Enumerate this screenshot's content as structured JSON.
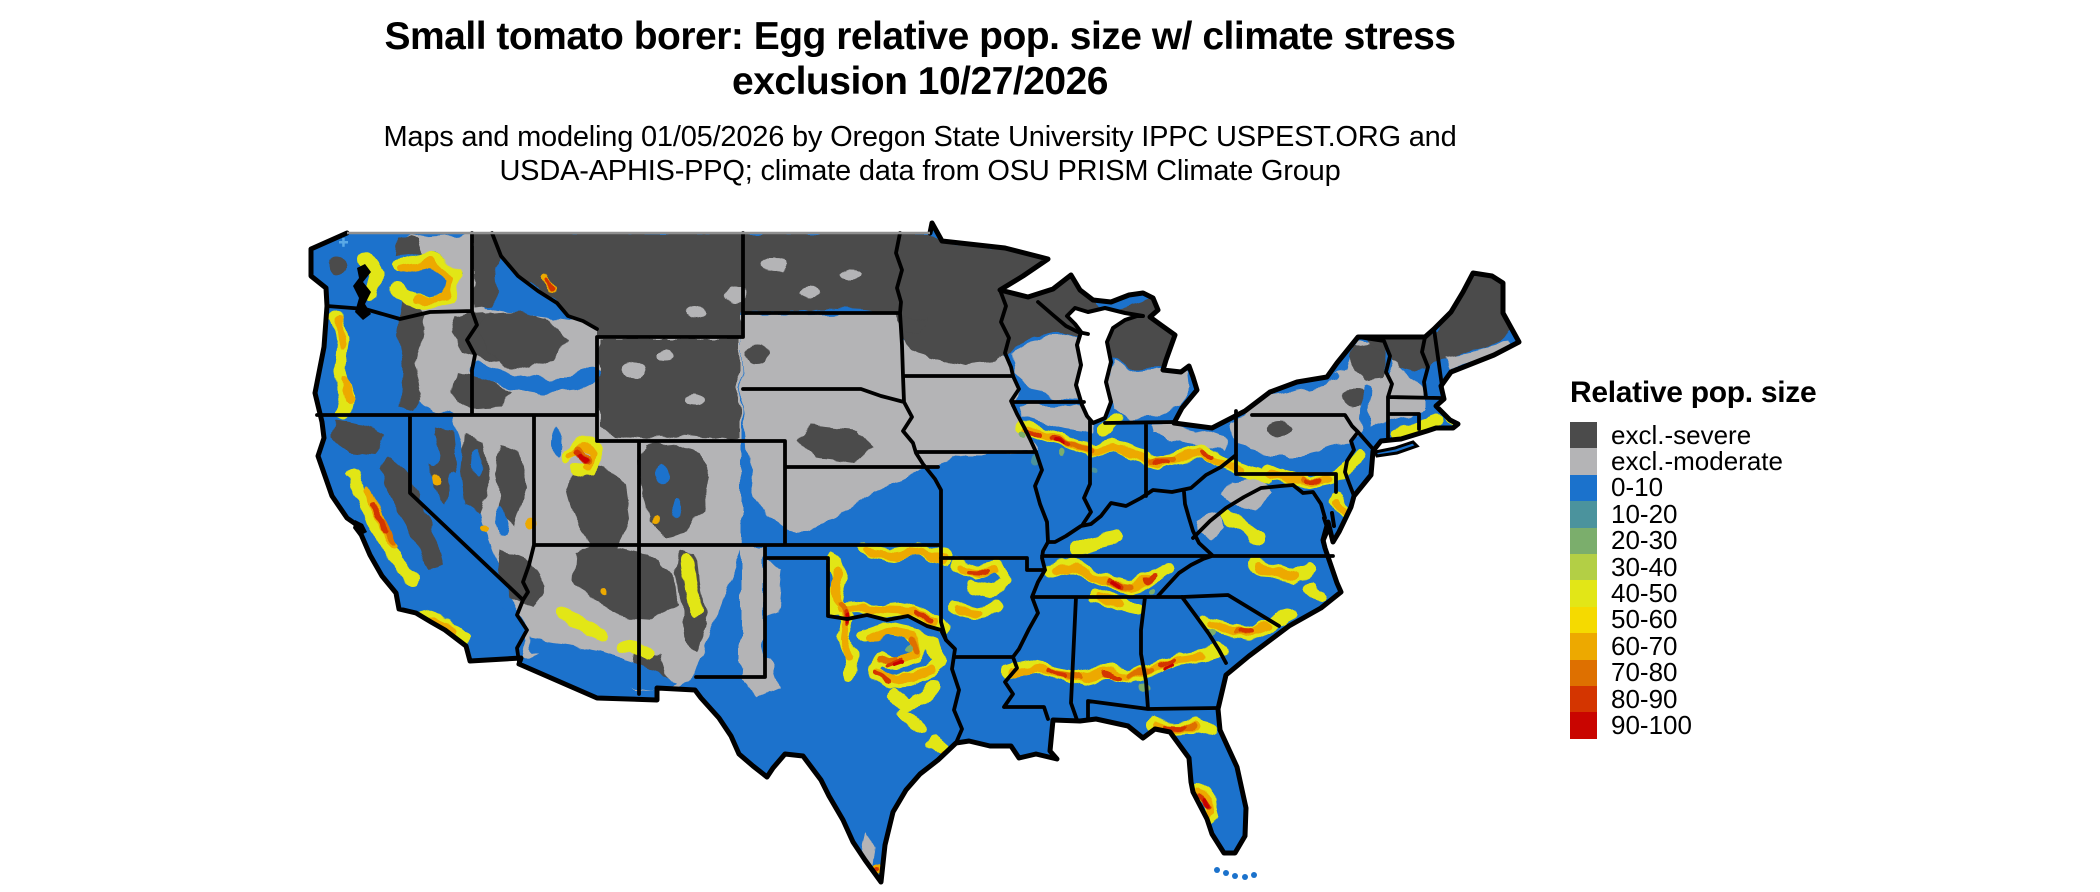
{
  "header": {
    "title_line1": "Small tomato borer: Egg relative pop. size w/ climate stress",
    "title_line2": "exclusion 10/27/2026",
    "subtitle_line1": "Maps and modeling 01/05/2026 by Oregon State University IPPC USPEST.ORG and",
    "subtitle_line2": "USDA-APHIS-PPQ; climate data from OSU PRISM Climate Group"
  },
  "legend": {
    "title": "Relative pop. size",
    "items": [
      {
        "label": "excl.-severe",
        "color": "#4b4b4b"
      },
      {
        "label": "excl.-moderate",
        "color": "#b4b4b6"
      },
      {
        "label": "0-10",
        "color": "#1b72cc"
      },
      {
        "label": "10-20",
        "color": "#4b939d"
      },
      {
        "label": "20-30",
        "color": "#7bae6c"
      },
      {
        "label": "30-40",
        "color": "#b3cf45"
      },
      {
        "label": "40-50",
        "color": "#e2e617"
      },
      {
        "label": "50-60",
        "color": "#f5da00"
      },
      {
        "label": "60-70",
        "color": "#eda900"
      },
      {
        "label": "70-80",
        "color": "#de7000"
      },
      {
        "label": "80-90",
        "color": "#d43500"
      },
      {
        "label": "90-100",
        "color": "#c90500"
      }
    ]
  },
  "map": {
    "region": "Continental United States",
    "kind": "raster risk map with state boundaries",
    "palette": {
      "severe": "#4b4b4b",
      "moderate": "#b4b4b6",
      "b0": "#1b72cc",
      "b10": "#4b939d",
      "b20": "#7bae6c",
      "b30": "#b3cf45",
      "b40": "#e2e617",
      "b50": "#f5da00",
      "b60": "#eda900",
      "b70": "#de7000",
      "b80": "#d43500",
      "b90": "#c90500",
      "border": "#000000",
      "canada_border": "#8f8f8f",
      "water": "#ffffff",
      "marker": "#5aa9e6"
    }
  }
}
